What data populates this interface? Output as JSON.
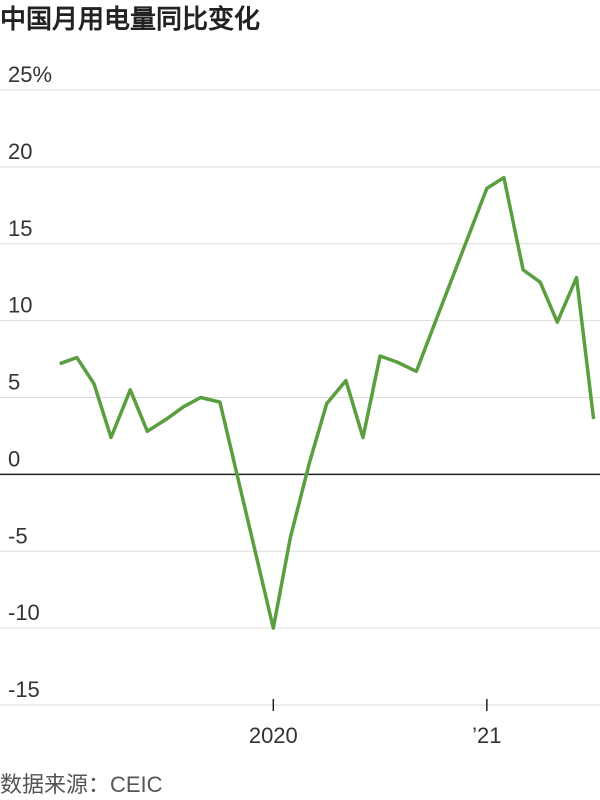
{
  "chart_data": {
    "type": "line",
    "title": "中国月用电量同比变化",
    "source": "数据来源：CEIC",
    "x": [
      2019.0,
      2019.08,
      2019.16,
      2019.24,
      2019.33,
      2019.41,
      2019.5,
      2019.58,
      2019.66,
      2019.75,
      2020.0,
      2020.08,
      2020.17,
      2020.25,
      2020.34,
      2020.42,
      2020.5,
      2020.58,
      2020.67,
      2020.75,
      2021.0,
      2021.08,
      2021.17,
      2021.25,
      2021.33,
      2021.42,
      2021.5
    ],
    "series": [
      {
        "color": "#5a9e3f",
        "values": [
          7.2,
          7.6,
          5.9,
          2.4,
          5.5,
          2.8,
          3.6,
          4.4,
          5.0,
          4.7,
          -10.0,
          -4.1,
          0.8,
          4.6,
          6.1,
          2.4,
          7.7,
          7.3,
          6.7,
          9.6,
          18.6,
          19.3,
          13.3,
          12.5,
          9.9,
          12.8,
          3.6
        ]
      }
    ],
    "xlim": [
      2018.72,
      2021.53
    ],
    "xticks": [
      2020,
      {
        "value": 2021,
        "label": "’21"
      }
    ],
    "ylim": [
      -15,
      25
    ],
    "yticks": [
      {
        "value": 25,
        "label": "25%"
      },
      20,
      15,
      10,
      5,
      0,
      -5,
      -10,
      -15
    ],
    "grid": true
  }
}
